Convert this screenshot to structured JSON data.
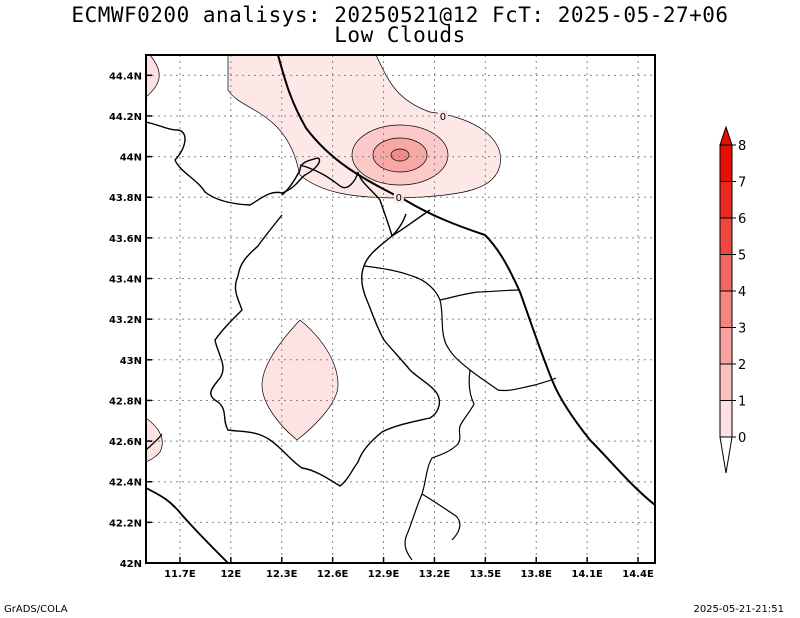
{
  "title": {
    "line1": "ECMWF0200 analisys: 20250521@12 FcT: 2025-05-27+06",
    "line2": "Low Clouds"
  },
  "footer": {
    "credit": "GrADS/COLA",
    "timestamp": "2025-05-21-21:51"
  },
  "map": {
    "lon_range": [
      11.5,
      14.5
    ],
    "lat_range": [
      42.0,
      44.5
    ],
    "grid": true,
    "x_ticks": [
      {
        "value": 11.7,
        "label": "11.7E"
      },
      {
        "value": 12.0,
        "label": "12E"
      },
      {
        "value": 12.3,
        "label": "12.3E"
      },
      {
        "value": 12.6,
        "label": "12.6E"
      },
      {
        "value": 12.9,
        "label": "12.9E"
      },
      {
        "value": 13.2,
        "label": "13.2E"
      },
      {
        "value": 13.5,
        "label": "13.5E"
      },
      {
        "value": 13.8,
        "label": "13.8E"
      },
      {
        "value": 14.1,
        "label": "14.1E"
      },
      {
        "value": 14.4,
        "label": "14.4E"
      }
    ],
    "y_ticks": [
      {
        "value": 42.0,
        "label": "42N"
      },
      {
        "value": 42.2,
        "label": "42.2N"
      },
      {
        "value": 42.4,
        "label": "42.4N"
      },
      {
        "value": 42.6,
        "label": "42.6N"
      },
      {
        "value": 42.8,
        "label": "42.8N"
      },
      {
        "value": 43.0,
        "label": "43N"
      },
      {
        "value": 43.2,
        "label": "43.2N"
      },
      {
        "value": 43.4,
        "label": "43.4N"
      },
      {
        "value": 43.6,
        "label": "43.6N"
      },
      {
        "value": 43.8,
        "label": "43.8N"
      },
      {
        "value": 44.0,
        "label": "44N"
      },
      {
        "value": 44.2,
        "label": "44.2N"
      },
      {
        "value": 44.4,
        "label": "44.4N"
      }
    ],
    "contour_labels": [
      {
        "text": "0",
        "lon": 13.25,
        "lat": 44.2
      },
      {
        "text": "0",
        "lon": 12.99,
        "lat": 43.8
      }
    ]
  },
  "colorbar": {
    "levels": [
      "0",
      "1",
      "2",
      "3",
      "4",
      "5",
      "6",
      "7",
      "8"
    ],
    "colors": [
      "#ffffff",
      "#fde0df",
      "#fbc2c0",
      "#f8a3a0",
      "#f58581",
      "#f26660",
      "#ef4740",
      "#eb2a21",
      "#e50f05"
    ]
  }
}
